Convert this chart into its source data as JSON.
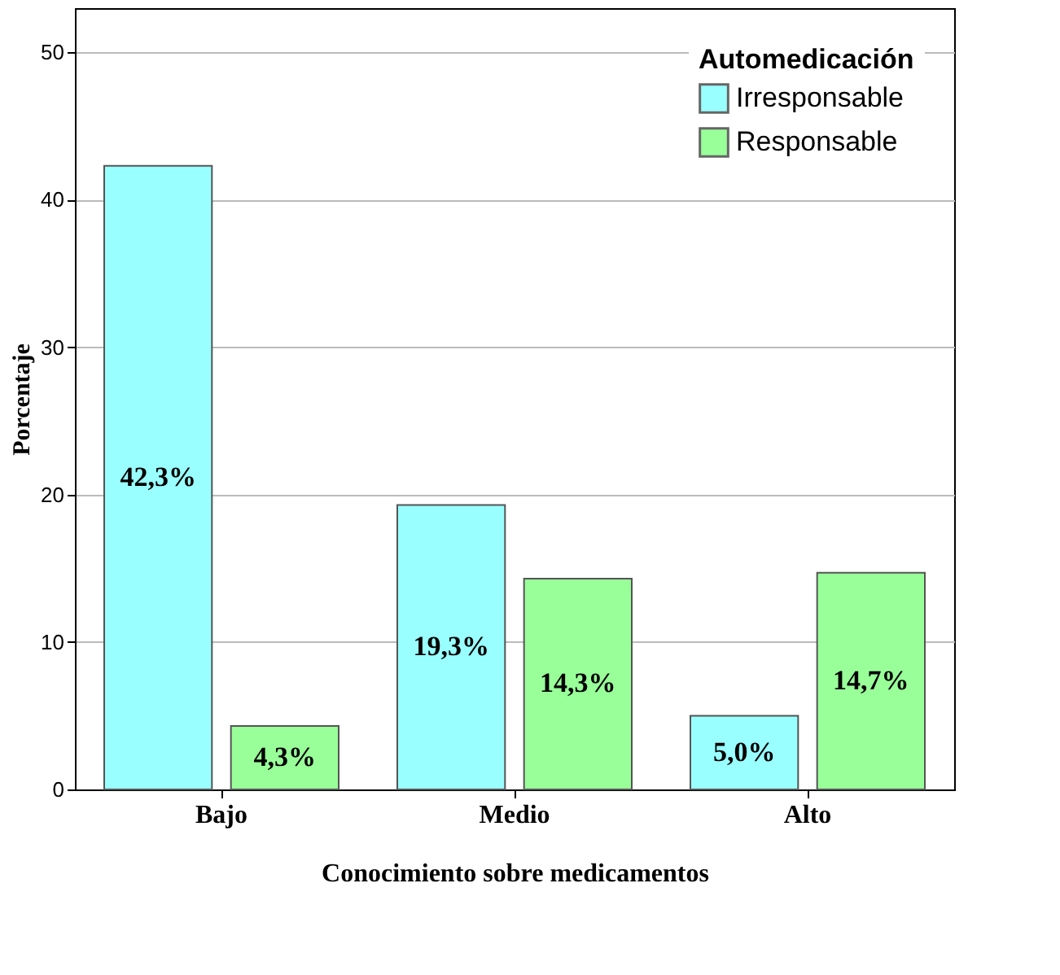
{
  "chart_data": {
    "type": "bar",
    "xlabel": "Conocimiento sobre medicamentos",
    "ylabel": "Porcentaje",
    "legend_title": "Automedicación",
    "categories": [
      "Bajo",
      "Medio",
      "Alto"
    ],
    "series": [
      {
        "name": "Irresponsable",
        "color": "#99ffff",
        "values": [
          42.3,
          19.3,
          5.0
        ],
        "value_labels": [
          "42,3%",
          "19,3%",
          "5,0%"
        ]
      },
      {
        "name": "Responsable",
        "color": "#99ff99",
        "values": [
          4.3,
          14.3,
          14.7
        ],
        "value_labels": [
          "4,3%",
          "14,3%",
          "14,7%"
        ]
      }
    ],
    "ylim": [
      0,
      53
    ],
    "yticks": [
      0,
      10,
      20,
      30,
      40,
      50
    ],
    "grid": "y",
    "legend": "top right"
  }
}
